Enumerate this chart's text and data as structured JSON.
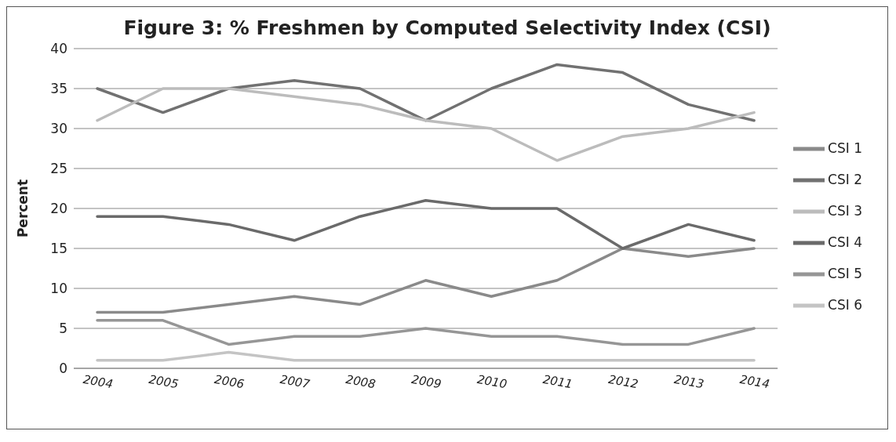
{
  "chart_data": {
    "type": "line",
    "title": "Figure 3: % Freshmen by Computed Selectivity Index (CSI)",
    "ylabel": "Percent",
    "categories": [
      "2004",
      "2005",
      "2006",
      "2007",
      "2008",
      "2009",
      "2010",
      "2011",
      "2012",
      "2013",
      "2014"
    ],
    "series": [
      {
        "name": "CSI 1",
        "color": "#8a8a8a",
        "values": [
          7,
          7,
          8,
          9,
          8,
          11,
          9,
          11,
          15,
          14,
          15
        ]
      },
      {
        "name": "CSI 2",
        "color": "#717171",
        "values": [
          35,
          32,
          35,
          36,
          35,
          31,
          35,
          38,
          37,
          33,
          31
        ]
      },
      {
        "name": "CSI 3",
        "color": "#bcbcbc",
        "values": [
          31,
          35,
          35,
          34,
          33,
          31,
          30,
          26,
          29,
          30,
          32
        ]
      },
      {
        "name": "CSI 4",
        "color": "#6a6a6a",
        "values": [
          19,
          19,
          18,
          16,
          19,
          21,
          20,
          20,
          15,
          18,
          16
        ]
      },
      {
        "name": "CSI 5",
        "color": "#969696",
        "values": [
          6,
          6,
          3,
          4,
          4,
          5,
          4,
          4,
          3,
          3,
          5
        ]
      },
      {
        "name": "CSI 6",
        "color": "#c4c4c4",
        "values": [
          1,
          1,
          2,
          1,
          1,
          1,
          1,
          1,
          1,
          1,
          1
        ]
      }
    ],
    "ylim": [
      0,
      40
    ],
    "yticks": [
      0,
      5,
      10,
      15,
      20,
      25,
      30,
      35,
      40
    ],
    "grid": "y",
    "legend": "right",
    "marker": "none",
    "line_style": "solid"
  }
}
